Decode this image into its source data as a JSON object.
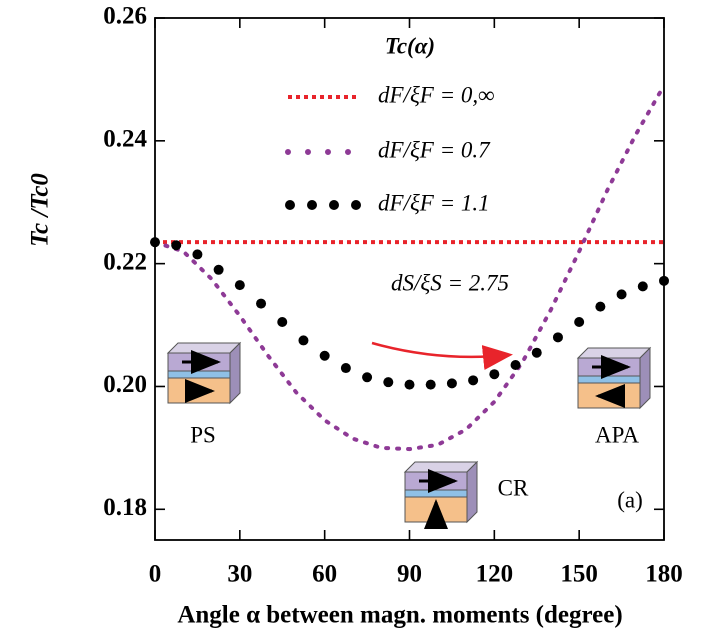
{
  "chart_data": {
    "type": "line",
    "ylabel": "Tc /Tc0",
    "xlabel": "Angle α between magn. moments (degree)",
    "legend_title": "Tc(α)",
    "annotations": {
      "ratio": "dS/ξS = 2.75",
      "ps": "PS",
      "cr": "CR",
      "apa": "APA",
      "panel": "(a)"
    },
    "xlim": [
      0,
      180
    ],
    "ylim": [
      0.175,
      0.26
    ],
    "xticks": [
      0,
      30,
      60,
      90,
      120,
      150,
      180
    ],
    "yticks": [
      0.18,
      {
        "value": 0.2,
        "label": "0.20"
      },
      0.22,
      0.24,
      0.26
    ],
    "series": [
      {
        "name": "dF/ξF = 0,∞",
        "color": "#e8242b",
        "style": "dashed",
        "x": [
          0,
          180
        ],
        "values": [
          0.2235,
          0.2235
        ]
      },
      {
        "name": "dF/ξF = 0.7",
        "color": "#8e3a96",
        "style": "dotted",
        "x": [
          0,
          10,
          20,
          30,
          40,
          50,
          60,
          70,
          80,
          90,
          100,
          110,
          120,
          130,
          140,
          150,
          160,
          170,
          180
        ],
        "values": [
          0.2235,
          0.222,
          0.2175,
          0.2115,
          0.205,
          0.199,
          0.1945,
          0.1915,
          0.19,
          0.1898,
          0.1905,
          0.193,
          0.1975,
          0.204,
          0.2125,
          0.222,
          0.232,
          0.241,
          0.249
        ]
      },
      {
        "name": "dF/ξF = 1.1",
        "color": "#000000",
        "style": "markers",
        "x": [
          0,
          7.5,
          15,
          22.5,
          30,
          37.5,
          45,
          52.5,
          60,
          67.5,
          75,
          82.5,
          90,
          97.5,
          105,
          112.5,
          120,
          127.5,
          135,
          142.5,
          150,
          157.5,
          165,
          172.5,
          180
        ],
        "values": [
          0.2235,
          0.223,
          0.2215,
          0.219,
          0.2165,
          0.2135,
          0.2105,
          0.2075,
          0.205,
          0.203,
          0.2015,
          0.2007,
          0.2003,
          0.2003,
          0.2005,
          0.201,
          0.202,
          0.2035,
          0.2055,
          0.208,
          0.2105,
          0.213,
          0.215,
          0.2163,
          0.2172
        ]
      }
    ]
  }
}
